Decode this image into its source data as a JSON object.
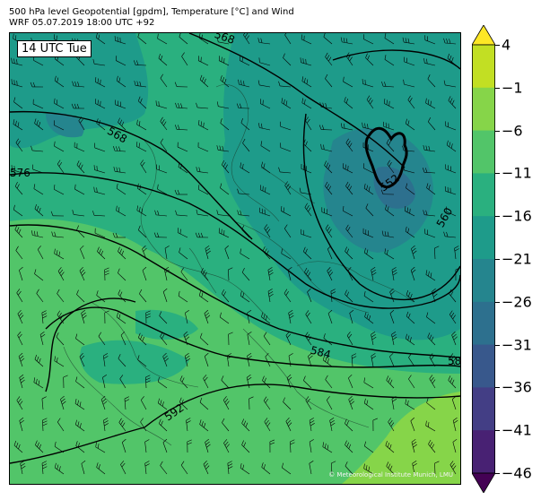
{
  "header": {
    "title_line1": "500 hPa level Geopotential [gpdm], Temperature [°C] and Wind",
    "title_line2": "WRF 05.07.2019 18:00 UTC +92"
  },
  "map": {
    "time_label": "14 UTC Tue",
    "credit": "© Meteorological Institute Munich, LMU",
    "contour_labels": [
      "568",
      "568",
      "576",
      "560",
      "552",
      "584",
      "592",
      "58"
    ]
  },
  "colorbar": {
    "ticks": [
      "4",
      "−1",
      "−6",
      "−11",
      "−16",
      "−21",
      "−26",
      "−31",
      "−36",
      "−41",
      "−46"
    ],
    "colors": [
      "#fde725",
      "#c2df23",
      "#86d549",
      "#52c569",
      "#2ab07f",
      "#1e9b8a",
      "#25858e",
      "#2d708e",
      "#38588c",
      "#433e85",
      "#482173",
      "#440154"
    ]
  }
}
